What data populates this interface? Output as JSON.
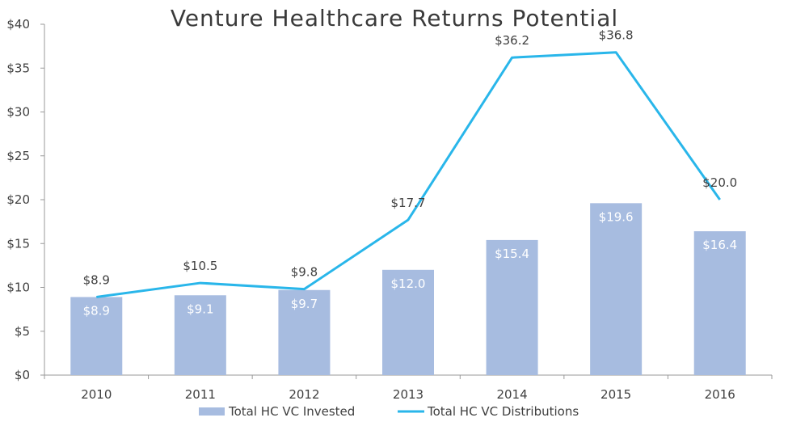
{
  "chart_data": {
    "type": "bar",
    "title": "Venture Healthcare Returns Potential",
    "xlabel": "",
    "ylabel": "",
    "categories": [
      "2010",
      "2011",
      "2012",
      "2013",
      "2014",
      "2015",
      "2016"
    ],
    "ylim": [
      0,
      40
    ],
    "yticks": [
      0,
      5,
      10,
      15,
      20,
      25,
      30,
      35,
      40
    ],
    "ytick_labels": [
      "$0",
      "$5",
      "$10",
      "$15",
      "$20",
      "$25",
      "$30",
      "$35",
      "$40"
    ],
    "grid": false,
    "legend_position": "bottom",
    "series": [
      {
        "name": "Total HC VC Invested",
        "type": "bar",
        "color": "#a7bce0",
        "values": [
          8.9,
          9.1,
          9.7,
          12.0,
          15.4,
          19.6,
          16.4
        ],
        "labels": [
          "$8.9",
          "$9.1",
          "$9.7",
          "$12.0",
          "$15.4",
          "$19.6",
          "$16.4"
        ]
      },
      {
        "name": "Total HC VC Distributions",
        "type": "line",
        "color": "#29b6ea",
        "values": [
          8.9,
          10.5,
          9.8,
          17.7,
          36.2,
          36.8,
          20.0
        ],
        "labels": [
          "$8.9",
          "$10.5",
          "$9.8",
          "$17.7",
          "$36.2",
          "$36.8",
          "$20.0"
        ]
      }
    ]
  }
}
